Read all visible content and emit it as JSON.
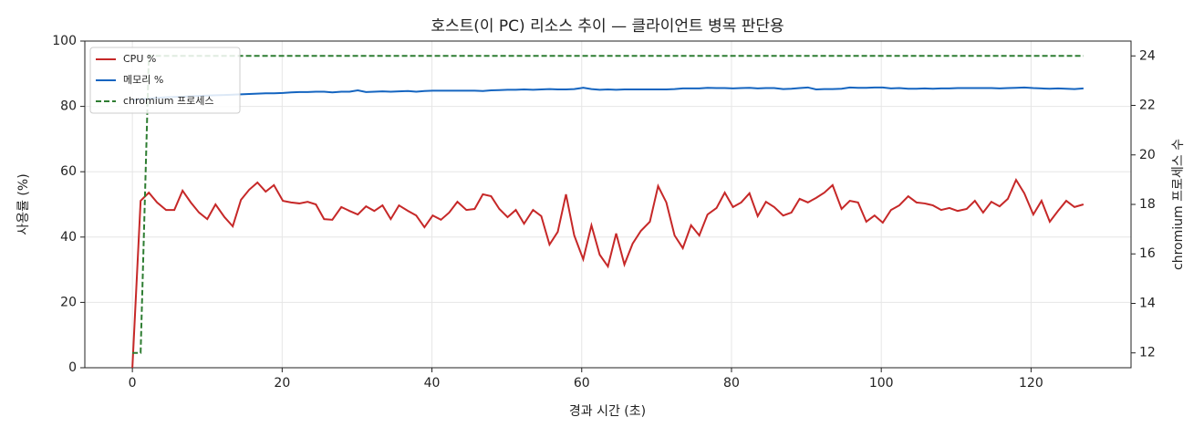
{
  "chart_data": {
    "type": "line",
    "title": "호스트(이 PC) 리소스 추이 — 클라이언트 병목 판단용",
    "x_label": "경과 시간 (초)",
    "y_label": "사용률 (%)",
    "y2_label": "chromium 프로세스 수",
    "x": [
      0,
      1.1,
      2.2,
      3.3,
      4.5,
      5.6,
      6.7,
      7.8,
      8.9,
      10.0,
      11.1,
      12.3,
      13.4,
      14.5,
      15.6,
      16.7,
      17.8,
      18.9,
      20.1,
      21.2,
      22.3,
      23.4,
      24.5,
      25.6,
      26.7,
      27.9,
      29.0,
      30.1,
      31.2,
      32.3,
      33.4,
      34.5,
      35.6,
      36.8,
      37.9,
      39.0,
      40.1,
      41.2,
      42.3,
      43.4,
      44.6,
      45.7,
      46.8,
      47.9,
      49.0,
      50.1,
      51.2,
      52.3,
      53.5,
      54.6,
      55.7,
      56.8,
      57.9,
      59.0,
      60.2,
      61.3,
      62.4,
      63.5,
      64.6,
      65.7,
      66.8,
      67.9,
      69.1,
      70.2,
      71.3,
      72.4,
      73.5,
      74.6,
      75.7,
      76.8,
      78.0,
      79.1,
      80.2,
      81.3,
      82.4,
      83.5,
      84.6,
      85.7,
      86.9,
      88.0,
      89.1,
      90.2,
      91.3,
      92.4,
      93.5,
      94.7,
      95.8,
      96.9,
      98.0,
      99.1,
      100.2,
      101.3,
      102.4,
      103.6,
      104.7,
      105.8,
      106.9,
      108.0,
      109.1,
      110.2,
      111.4,
      112.5,
      113.6,
      114.7,
      115.8,
      116.9,
      118.0,
      119.1,
      120.3,
      121.4,
      122.5,
      123.6,
      124.7,
      125.8,
      127.0
    ],
    "series": [
      {
        "name": "CPU %",
        "color": "#c62828",
        "linestyle": "solid",
        "axis": "y",
        "values": [
          0,
          51.1,
          53.6,
          50.6,
          48.3,
          48.3,
          54.2,
          50.6,
          47.5,
          45.5,
          50.0,
          46.1,
          43.3,
          51.4,
          54.5,
          56.7,
          53.9,
          55.9,
          51.1,
          50.6,
          50.3,
          50.8,
          50.0,
          45.5,
          45.3,
          49.2,
          48.0,
          46.9,
          49.4,
          48.0,
          49.7,
          45.5,
          49.7,
          48.0,
          46.6,
          43.0,
          46.6,
          45.3,
          47.5,
          50.8,
          48.3,
          48.6,
          53.1,
          52.5,
          48.6,
          46.1,
          48.3,
          44.1,
          48.3,
          46.4,
          37.7,
          41.6,
          53.1,
          40.5,
          33.2,
          43.6,
          34.6,
          31.0,
          41.1,
          31.6,
          38.0,
          41.9,
          44.7,
          55.6,
          50.6,
          40.5,
          36.6,
          43.6,
          40.5,
          46.9,
          48.9,
          53.6,
          49.2,
          50.6,
          53.4,
          46.4,
          50.8,
          49.2,
          46.6,
          47.5,
          51.7,
          50.6,
          52.0,
          53.6,
          55.9,
          48.6,
          51.1,
          50.6,
          44.7,
          46.6,
          44.4,
          48.3,
          49.7,
          52.5,
          50.6,
          50.3,
          49.7,
          48.3,
          48.9,
          48.0,
          48.6,
          51.1,
          47.5,
          50.8,
          49.4,
          51.7,
          57.5,
          53.4,
          46.9,
          51.1,
          44.7,
          48.0,
          51.1,
          49.2,
          50.0
        ]
      },
      {
        "name": "메모리 %",
        "color": "#1565c0",
        "linestyle": "solid",
        "axis": "y",
        "values": [
          82.0,
          82.2,
          82.4,
          82.6,
          82.8,
          82.9,
          83.0,
          83.1,
          83.2,
          83.3,
          83.4,
          83.5,
          83.6,
          83.7,
          83.8,
          83.9,
          84.0,
          84.0,
          84.1,
          84.3,
          84.4,
          84.4,
          84.5,
          84.5,
          84.3,
          84.5,
          84.5,
          84.9,
          84.4,
          84.5,
          84.6,
          84.5,
          84.6,
          84.7,
          84.5,
          84.7,
          84.8,
          84.8,
          84.8,
          84.8,
          84.8,
          84.8,
          84.7,
          84.9,
          85.0,
          85.1,
          85.1,
          85.2,
          85.1,
          85.2,
          85.3,
          85.2,
          85.2,
          85.3,
          85.7,
          85.3,
          85.1,
          85.2,
          85.1,
          85.2,
          85.2,
          85.2,
          85.2,
          85.2,
          85.2,
          85.3,
          85.5,
          85.5,
          85.5,
          85.7,
          85.6,
          85.6,
          85.5,
          85.6,
          85.7,
          85.5,
          85.6,
          85.6,
          85.3,
          85.4,
          85.6,
          85.8,
          85.2,
          85.3,
          85.3,
          85.4,
          85.8,
          85.7,
          85.7,
          85.8,
          85.8,
          85.5,
          85.6,
          85.4,
          85.4,
          85.5,
          85.4,
          85.5,
          85.5,
          85.6,
          85.6,
          85.6,
          85.6,
          85.6,
          85.5,
          85.6,
          85.7,
          85.8,
          85.6,
          85.5,
          85.4,
          85.5,
          85.4,
          85.3,
          85.5
        ]
      },
      {
        "name": "chromium 프로세스",
        "color": "#2e7d32",
        "linestyle": "dashed",
        "axis": "y2",
        "values": [
          12,
          12,
          24,
          24,
          24,
          24,
          24,
          24,
          24,
          24,
          24,
          24,
          24,
          24,
          24,
          24,
          24,
          24,
          24,
          24,
          24,
          24,
          24,
          24,
          24,
          24,
          24,
          24,
          24,
          24,
          24,
          24,
          24,
          24,
          24,
          24,
          24,
          24,
          24,
          24,
          24,
          24,
          24,
          24,
          24,
          24,
          24,
          24,
          24,
          24,
          24,
          24,
          24,
          24,
          24,
          24,
          24,
          24,
          24,
          24,
          24,
          24,
          24,
          24,
          24,
          24,
          24,
          24,
          24,
          24,
          24,
          24,
          24,
          24,
          24,
          24,
          24,
          24,
          24,
          24,
          24,
          24,
          24,
          24,
          24,
          24,
          24,
          24,
          24,
          24,
          24,
          24,
          24,
          24,
          24,
          24,
          24,
          24,
          24,
          24,
          24,
          24,
          24,
          24,
          24,
          24,
          24,
          24,
          24,
          24,
          24,
          24,
          24,
          24,
          24
        ]
      }
    ],
    "xlim": [
      -6.35,
      133.35
    ],
    "xticks": [
      0,
      20,
      40,
      60,
      80,
      100,
      120
    ],
    "ylim": [
      0,
      100
    ],
    "yticks": [
      0,
      20,
      40,
      60,
      80,
      100
    ],
    "y2lim": [
      11.4,
      24.6
    ],
    "y2ticks": [
      12,
      14,
      16,
      18,
      20,
      22,
      24
    ],
    "grid": true,
    "legend": "upper-left"
  }
}
